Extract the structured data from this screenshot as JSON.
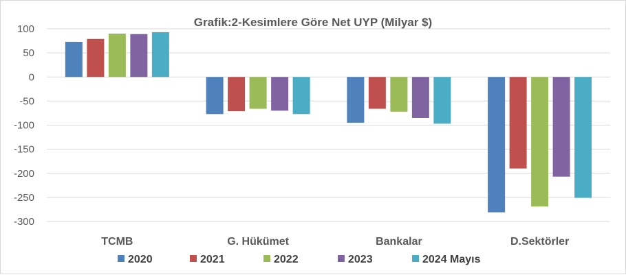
{
  "chart_data": {
    "type": "bar",
    "title": "Grafik:2-Kesimlere Göre Net UYP (Milyar $)",
    "xlabel": "",
    "ylabel": "",
    "ylim": [
      -300,
      100
    ],
    "yticks": [
      "100",
      "50",
      "0",
      "-50",
      "-100",
      "-150",
      "-200",
      "-250",
      "-300"
    ],
    "categories": [
      "TCMB",
      "G. Hükümet",
      "Bankalar",
      "D.Sektörler"
    ],
    "series": [
      {
        "name": "2020",
        "color": "#4f81bd",
        "values": [
          73,
          -77,
          -95,
          -281
        ]
      },
      {
        "name": "2021",
        "color": "#c0504d",
        "values": [
          79,
          -71,
          -66,
          -190
        ]
      },
      {
        "name": "2022",
        "color": "#9bbb59",
        "values": [
          90,
          -66,
          -72,
          -269
        ]
      },
      {
        "name": "2023",
        "color": "#8064a2",
        "values": [
          89,
          -70,
          -85,
          -207
        ]
      },
      {
        "name": "2024 Mayıs",
        "color": "#4bacc6",
        "values": [
          93,
          -77,
          -97,
          -251
        ]
      }
    ],
    "grid": true,
    "legend": "bottom"
  }
}
